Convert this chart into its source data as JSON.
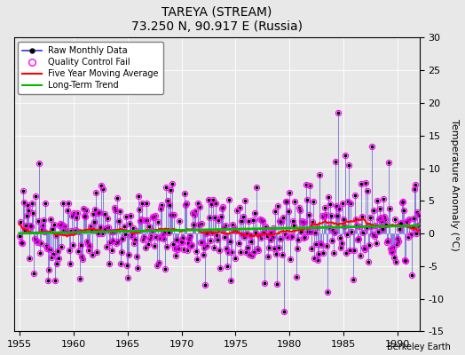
{
  "title": "TAREYA (STREAM)",
  "subtitle": "73.250 N, 90.917 E (Russia)",
  "credit": "Berkeley Earth",
  "ylabel": "Temperature Anomaly (°C)",
  "xlim": [
    1954.5,
    1992
  ],
  "ylim": [
    -15,
    30
  ],
  "yticks": [
    -15,
    -10,
    -5,
    0,
    5,
    10,
    15,
    20,
    25,
    30
  ],
  "xticks": [
    1955,
    1960,
    1965,
    1970,
    1975,
    1980,
    1985,
    1990
  ],
  "raw_color": "#3333cc",
  "ma_color": "#ff0000",
  "trend_color": "#00bb00",
  "qc_color": "#ff00ff",
  "background": "#e8e8e8",
  "seed": 12345
}
